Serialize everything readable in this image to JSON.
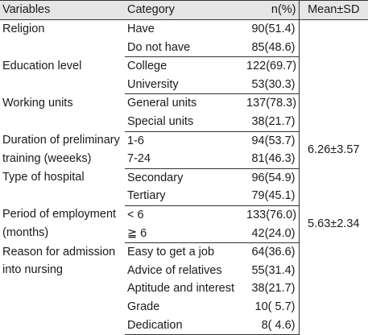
{
  "headers": {
    "variables": "Variables",
    "category": "Category",
    "n_pct": "n(%)",
    "mean_sd": "Mean±SD"
  },
  "groups": [
    {
      "variable": "Religion",
      "mean_sd": "",
      "rows": [
        {
          "category": "Have",
          "n": "90(51.4)"
        },
        {
          "category": "Do not have",
          "n": "85(48.6)"
        }
      ]
    },
    {
      "variable": "Education level",
      "mean_sd": "",
      "rows": [
        {
          "category": "College",
          "n": "122(69.7)"
        },
        {
          "category": "University",
          "n": "53(30.3)"
        }
      ]
    },
    {
      "variable": "Working units",
      "mean_sd": "",
      "rows": [
        {
          "category": "General units",
          "n": "137(78.3)"
        },
        {
          "category": "Special units",
          "n": "38(21.7)"
        }
      ]
    },
    {
      "variable": "Duration of preliminary training (weeeks)",
      "mean_sd": "6.26±3.57",
      "rows": [
        {
          "category": "1-6",
          "n": "94(53.7)"
        },
        {
          "category": "7-24",
          "n": "81(46.3)"
        }
      ]
    },
    {
      "variable": "Type of hospital",
      "mean_sd": "",
      "rows": [
        {
          "category": "Secondary",
          "n": "96(54.9)"
        },
        {
          "category": "Tertiary",
          "n": "79(45.1)"
        }
      ]
    },
    {
      "variable": "Period of employment (months)",
      "mean_sd": "5.63±2.34",
      "rows": [
        {
          "category": "< 6",
          "n": "133(76.0)"
        },
        {
          "category": "≧ 6",
          "n": "42(24.0)"
        }
      ]
    },
    {
      "variable": "Reason for admission into nursing",
      "mean_sd": "",
      "rows": [
        {
          "category": "Easy to get a job",
          "n": "64(36.6)"
        },
        {
          "category": "Advice of relatives",
          "n": "55(31.4)"
        },
        {
          "category": "Aptitude and interest",
          "n": "38(21.7)"
        },
        {
          "category": "Grade",
          "n": "10( 5.7)"
        },
        {
          "category": "Dedication",
          "n": "8( 4.6)"
        }
      ]
    }
  ]
}
